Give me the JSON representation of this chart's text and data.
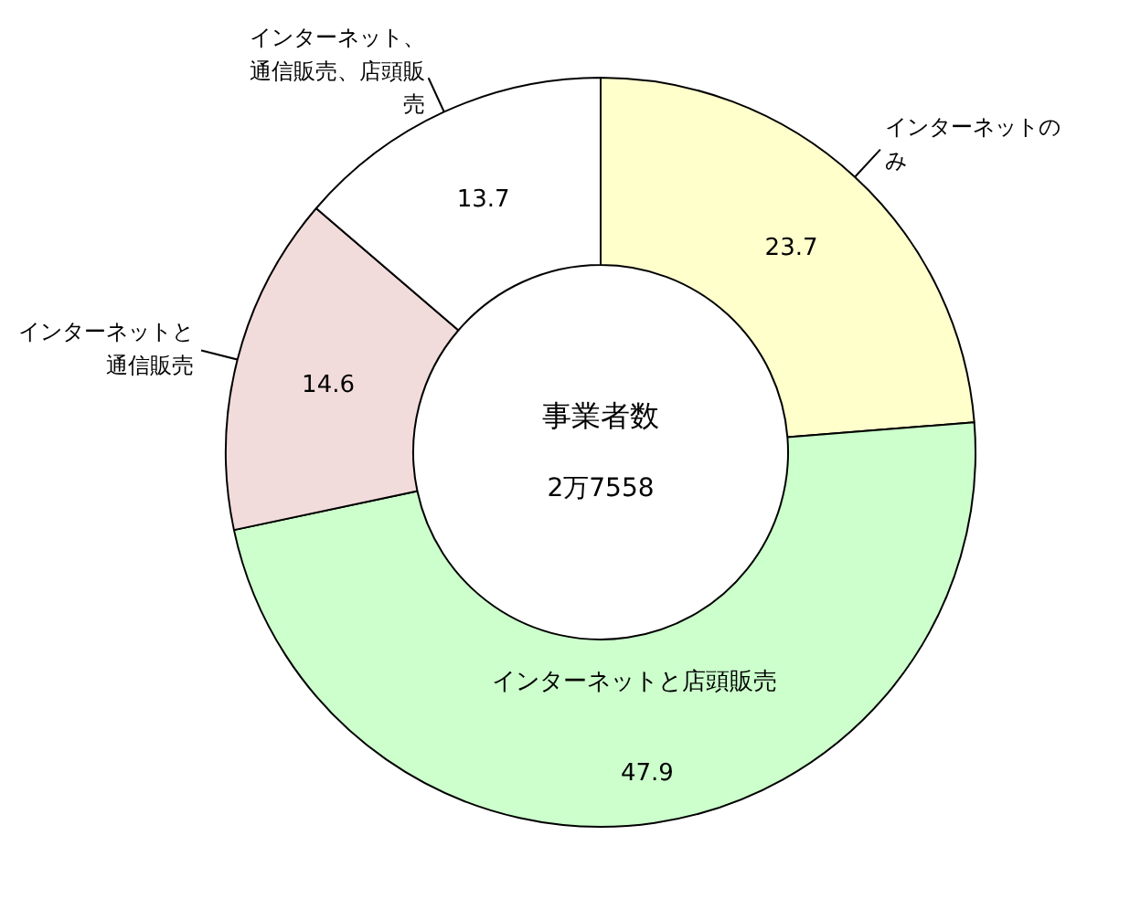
{
  "chart_data": {
    "type": "donut",
    "categories": [
      "インターネットのみ",
      "インターネットと店頭販売",
      "インターネットと通信販売",
      "インターネット、通信販売、店頭販売"
    ],
    "values": [
      23.7,
      47.9,
      14.6,
      13.7
    ],
    "colors": [
      "#ffffcc",
      "#ccffcc",
      "#f2dcdb",
      "#ffffff"
    ],
    "data_labels": true,
    "annotations": [
      "事業者数",
      "2万7558"
    ]
  }
}
